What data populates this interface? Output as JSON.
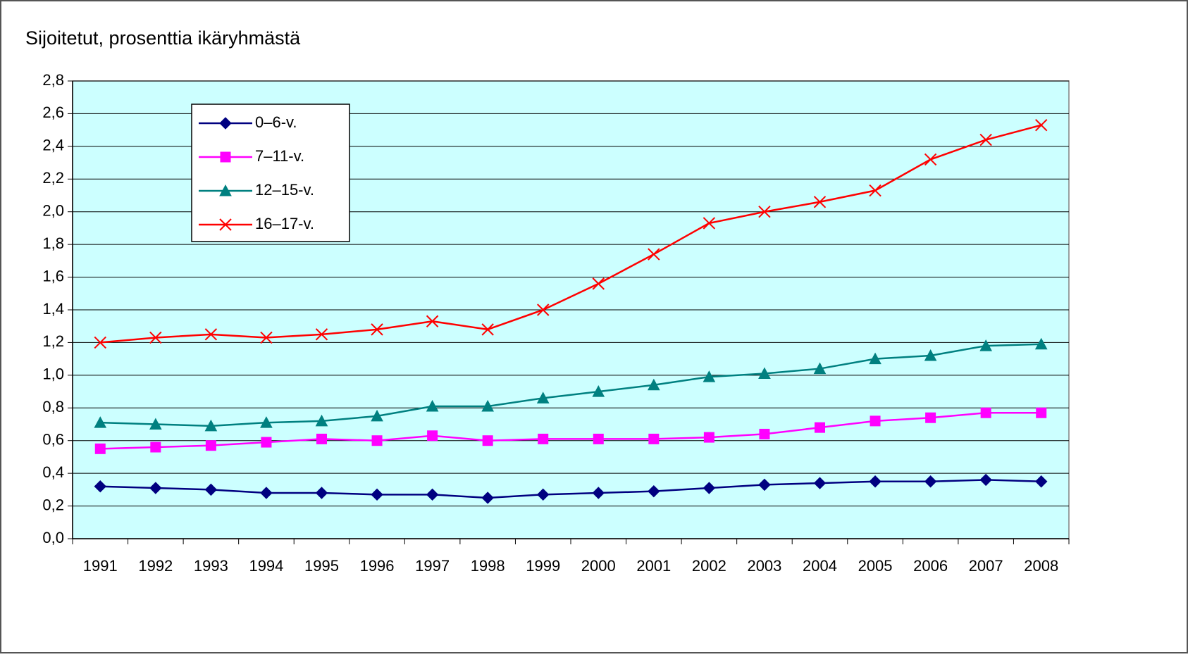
{
  "chart_data": {
    "type": "line",
    "title": "Sijoitetut, prosenttia ikäryhmästä",
    "categories": [
      "1991",
      "1992",
      "1993",
      "1994",
      "1995",
      "1996",
      "1997",
      "1998",
      "1999",
      "2000",
      "2001",
      "2002",
      "2003",
      "2004",
      "2005",
      "2006",
      "2007",
      "2008"
    ],
    "series": [
      {
        "name": "0–6-v.",
        "color": "#000080",
        "marker": "diamond",
        "values": [
          0.32,
          0.31,
          0.3,
          0.28,
          0.28,
          0.27,
          0.27,
          0.25,
          0.27,
          0.28,
          0.29,
          0.31,
          0.33,
          0.34,
          0.35,
          0.35,
          0.36,
          0.35
        ]
      },
      {
        "name": "7–11-v.",
        "color": "#ff00ff",
        "marker": "square",
        "values": [
          0.55,
          0.56,
          0.57,
          0.59,
          0.61,
          0.6,
          0.63,
          0.6,
          0.61,
          0.61,
          0.61,
          0.62,
          0.64,
          0.68,
          0.72,
          0.74,
          0.77,
          0.77
        ]
      },
      {
        "name": "12–15-v.",
        "color": "#008080",
        "marker": "triangle",
        "values": [
          0.71,
          0.7,
          0.69,
          0.71,
          0.72,
          0.75,
          0.81,
          0.81,
          0.86,
          0.9,
          0.94,
          0.99,
          1.01,
          1.04,
          1.1,
          1.12,
          1.18,
          1.19
        ]
      },
      {
        "name": "16–17-v.",
        "color": "#ff0000",
        "marker": "x",
        "values": [
          1.2,
          1.23,
          1.25,
          1.23,
          1.25,
          1.28,
          1.33,
          1.28,
          1.4,
          1.56,
          1.74,
          1.93,
          2.0,
          2.06,
          2.13,
          2.32,
          2.44,
          2.53
        ]
      }
    ],
    "ylim": [
      0,
      2.8
    ],
    "yticks": [
      {
        "value": 0,
        "label": "0,0"
      },
      {
        "value": 0.2,
        "label": "0,2"
      },
      {
        "value": 0.4,
        "label": "0,4"
      },
      {
        "value": 0.6,
        "label": "0,6"
      },
      {
        "value": 0.8,
        "label": "0,8"
      },
      {
        "value": 1.0,
        "label": "1,0"
      },
      {
        "value": 1.2,
        "label": "1,2"
      },
      {
        "value": 1.4,
        "label": "1,4"
      },
      {
        "value": 1.6,
        "label": "1,6"
      },
      {
        "value": 1.8,
        "label": "1,8"
      },
      {
        "value": 2.0,
        "label": "2,0"
      },
      {
        "value": 2.2,
        "label": "2,2"
      },
      {
        "value": 2.4,
        "label": "2,4"
      },
      {
        "value": 2.6,
        "label": "2,6"
      },
      {
        "value": 2.8,
        "label": "2,8"
      }
    ],
    "grid": true,
    "plot_background": "#ccffff",
    "legend": "upper left"
  }
}
